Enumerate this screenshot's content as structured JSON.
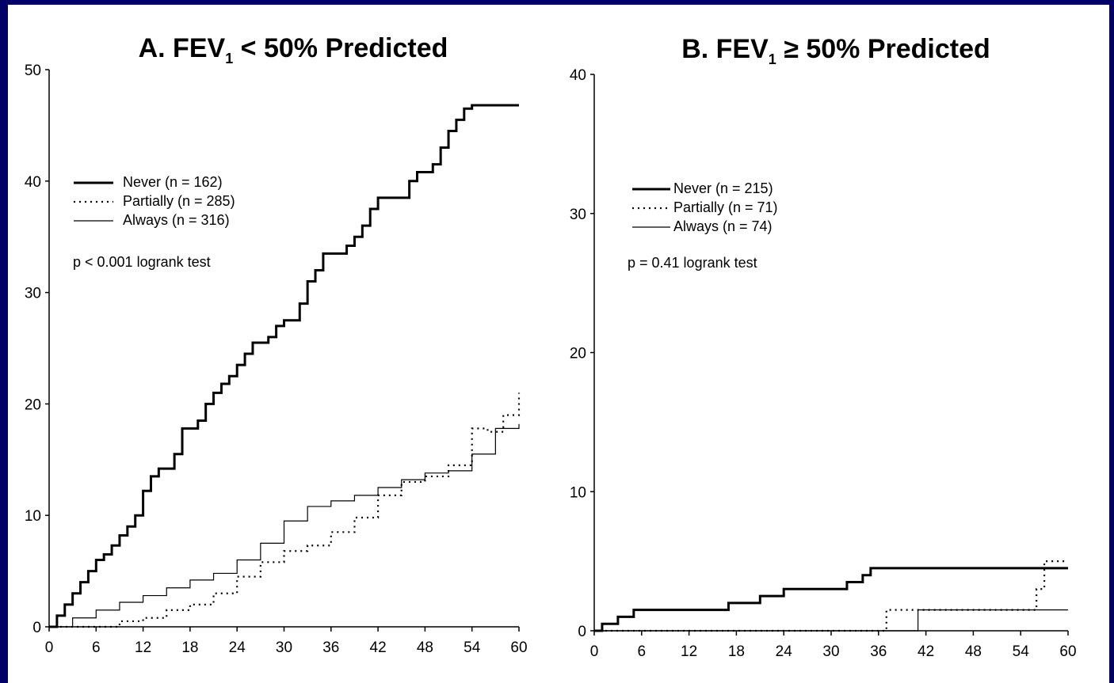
{
  "chart_data": [
    {
      "type": "line",
      "step": true,
      "title_prefix": "A. FEV",
      "title_subscript": "1",
      "title_suffix": " < 50% Predicted",
      "xlabel": "",
      "ylabel": "",
      "xlim": [
        0,
        60
      ],
      "ylim": [
        0,
        50
      ],
      "xticks": [
        0,
        6,
        12,
        18,
        24,
        30,
        36,
        42,
        48,
        54,
        60
      ],
      "yticks": [
        0,
        10,
        20,
        30,
        40,
        50
      ],
      "grid": false,
      "legend_position": "upper-left",
      "annotation": "p < 0.001 logrank test",
      "series": [
        {
          "name": "Never",
          "legend_label": "Never (n = 162)",
          "style": "solid-thick",
          "x": [
            0,
            1,
            2,
            3,
            4,
            5,
            6,
            7,
            8,
            9,
            10,
            11,
            12,
            13,
            14,
            15,
            16,
            17,
            18,
            19,
            20,
            21,
            22,
            23,
            24,
            25,
            26,
            27,
            28,
            29,
            30,
            31,
            32,
            33,
            34,
            35,
            36,
            37,
            38,
            39,
            40,
            41,
            42,
            43,
            44,
            45,
            46,
            47,
            48,
            49,
            50,
            51,
            52,
            53,
            54,
            55,
            56,
            57,
            58,
            59,
            60
          ],
          "y": [
            0,
            1,
            2,
            3,
            4,
            5,
            6,
            6.5,
            7.3,
            8.2,
            9,
            10,
            12.2,
            13.5,
            14.2,
            14.2,
            15.5,
            17.8,
            17.8,
            18.5,
            20,
            21,
            21.8,
            22.5,
            23.5,
            24.5,
            25.5,
            25.5,
            26,
            27,
            27.5,
            27.5,
            29,
            31,
            32,
            33.5,
            33.5,
            33.5,
            34.2,
            35,
            36,
            37.5,
            38.5,
            38.5,
            38.5,
            38.5,
            40,
            40.8,
            40.8,
            41.5,
            43,
            44.5,
            45.5,
            46.5,
            46.8,
            46.8,
            46.8,
            46.8,
            46.8,
            46.8,
            46.8
          ]
        },
        {
          "name": "Partially",
          "legend_label": "Partially (n = 285)",
          "style": "dotted",
          "x": [
            0,
            6,
            9,
            12,
            15,
            18,
            21,
            24,
            27,
            30,
            33,
            36,
            39,
            42,
            45,
            48,
            51,
            54,
            56,
            58,
            60
          ],
          "y": [
            0,
            0,
            0.5,
            0.8,
            1.5,
            2,
            3,
            4.5,
            5.8,
            6.8,
            7.3,
            8.5,
            9.8,
            11.8,
            13,
            13.5,
            14.5,
            17.8,
            17.5,
            19,
            21
          ]
        },
        {
          "name": "Always",
          "legend_label": "Always (n = 316)",
          "style": "solid-thin",
          "x": [
            0,
            3,
            6,
            9,
            12,
            15,
            18,
            21,
            24,
            27,
            30,
            33,
            36,
            39,
            42,
            45,
            48,
            51,
            54,
            57,
            60
          ],
          "y": [
            0,
            0.8,
            1.5,
            2.2,
            2.8,
            3.5,
            4.2,
            4.8,
            6,
            7.5,
            9.5,
            10.8,
            11.3,
            11.8,
            12.5,
            13.2,
            13.8,
            14,
            15.5,
            17.8,
            18.2
          ]
        }
      ]
    },
    {
      "type": "line",
      "step": true,
      "title_prefix": "B. FEV",
      "title_subscript": "1",
      "title_suffix": " ≥ 50% Predicted",
      "xlabel": "",
      "ylabel": "",
      "xlim": [
        0,
        60
      ],
      "ylim": [
        0,
        40
      ],
      "xticks": [
        0,
        6,
        12,
        18,
        24,
        30,
        36,
        42,
        48,
        54,
        60
      ],
      "yticks": [
        0,
        10,
        20,
        30,
        40
      ],
      "grid": false,
      "legend_position": "upper-left",
      "annotation": "p = 0.41 logrank test",
      "series": [
        {
          "name": "Never",
          "legend_label": "Never (n = 215)",
          "style": "solid-thick",
          "x": [
            0,
            1,
            2,
            3,
            4,
            5,
            8,
            10,
            14,
            16,
            17,
            20,
            21,
            24,
            26,
            32,
            34,
            35,
            36,
            60
          ],
          "y": [
            0,
            0.5,
            0.5,
            1,
            1,
            1.5,
            1.5,
            1.5,
            1.5,
            1.5,
            2,
            2,
            2.5,
            3,
            3,
            3.5,
            4,
            4.5,
            4.5,
            4.5
          ]
        },
        {
          "name": "Partially",
          "legend_label": "Partially (n = 71)",
          "style": "dotted",
          "x": [
            0,
            37,
            56,
            57,
            60
          ],
          "y": [
            0,
            1.5,
            3,
            5,
            5
          ]
        },
        {
          "name": "Always",
          "legend_label": "Always (n = 74)",
          "style": "solid-thin",
          "x": [
            0,
            41,
            60
          ],
          "y": [
            0,
            1.5,
            1.5
          ]
        }
      ]
    }
  ]
}
